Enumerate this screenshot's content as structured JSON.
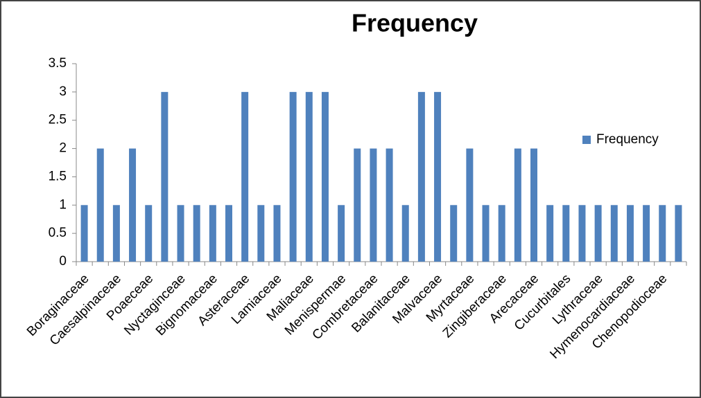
{
  "chart_data": {
    "type": "bar",
    "title": "Frequency",
    "categories": [
      "Boraginaceae",
      null,
      "Caesalpinaceae",
      null,
      "Poaeceae",
      null,
      "Nyctaginceae",
      null,
      "Bignomaceae",
      null,
      "Asteraceae",
      null,
      "Lamiaceae",
      null,
      "Maliaceae",
      null,
      "Menispermae",
      null,
      "Combretaceae",
      null,
      "Balanitaceae",
      null,
      "Malvaceae",
      null,
      "Myrtaceae",
      null,
      "Zingiberaceae",
      null,
      "Arecaceae",
      null,
      "Cucurbitales",
      null,
      "Lythraceae",
      null,
      "Hymenocardiaceae",
      null,
      "Chenopodioceae",
      null
    ],
    "series": [
      {
        "name": "Frequency",
        "color": "#4f81bd",
        "values": [
          1,
          2,
          1,
          2,
          1,
          3,
          1,
          1,
          1,
          1,
          3,
          1,
          1,
          3,
          3,
          3,
          1,
          2,
          2,
          2,
          1,
          3,
          3,
          1,
          2,
          1,
          1,
          2,
          2,
          1,
          1,
          1,
          1,
          1,
          1,
          1,
          1,
          1
        ]
      }
    ],
    "ylim": [
      0,
      3.5
    ],
    "yticks": [
      0,
      0.5,
      1,
      1.5,
      2,
      2.5,
      3,
      3.5
    ],
    "legend": "right"
  }
}
